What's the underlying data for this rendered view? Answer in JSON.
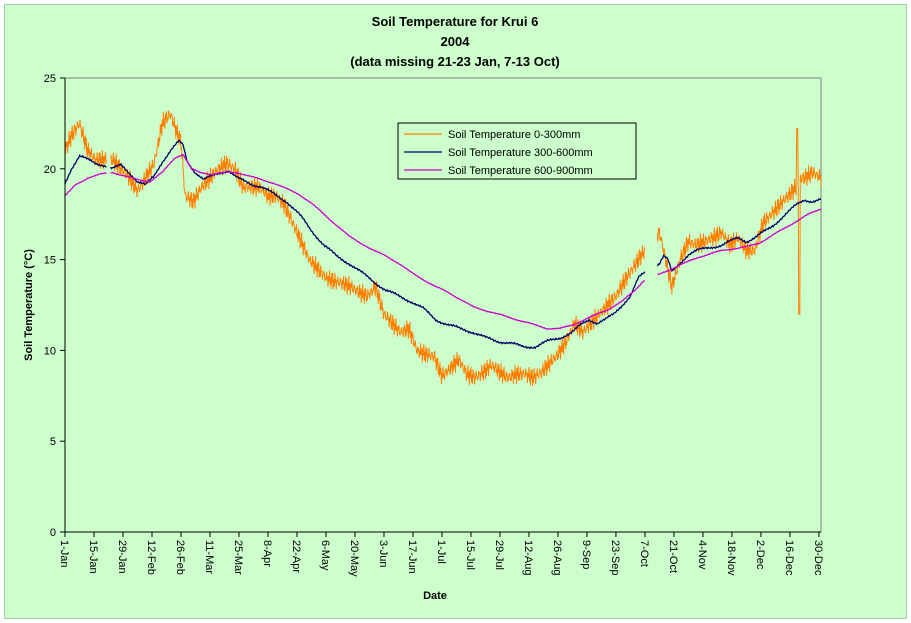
{
  "chart_data": {
    "type": "line",
    "title": [
      "Soil Temperature for Krui 6",
      "2004",
      "(data missing  21-23 Jan, 7-13 Oct)"
    ],
    "xlabel": "Date",
    "ylabel": "Soil Temperature (°C)",
    "ylim": [
      0,
      25
    ],
    "yticks": [
      0,
      5,
      10,
      15,
      20,
      25
    ],
    "xlim_day": [
      1,
      366
    ],
    "xticks": [
      {
        "day": 1,
        "label": "1-Jan"
      },
      {
        "day": 15,
        "label": "15-Jan"
      },
      {
        "day": 29,
        "label": "29-Jan"
      },
      {
        "day": 43,
        "label": "12-Feb"
      },
      {
        "day": 57,
        "label": "26-Feb"
      },
      {
        "day": 71,
        "label": "11-Mar"
      },
      {
        "day": 85,
        "label": "25-Mar"
      },
      {
        "day": 99,
        "label": "8-Apr"
      },
      {
        "day": 113,
        "label": "22-Apr"
      },
      {
        "day": 127,
        "label": "6-May"
      },
      {
        "day": 141,
        "label": "20-May"
      },
      {
        "day": 155,
        "label": "3-Jun"
      },
      {
        "day": 169,
        "label": "17-Jun"
      },
      {
        "day": 183,
        "label": "1-Jul"
      },
      {
        "day": 197,
        "label": "15-Jul"
      },
      {
        "day": 211,
        "label": "29-Jul"
      },
      {
        "day": 225,
        "label": "12-Aug"
      },
      {
        "day": 239,
        "label": "26-Aug"
      },
      {
        "day": 253,
        "label": "9-Sep"
      },
      {
        "day": 267,
        "label": "23-Sep"
      },
      {
        "day": 281,
        "label": "7-Oct"
      },
      {
        "day": 295,
        "label": "21-Oct"
      },
      {
        "day": 309,
        "label": "4-Nov"
      },
      {
        "day": 323,
        "label": "18-Nov"
      },
      {
        "day": 337,
        "label": "2-Dec"
      },
      {
        "day": 351,
        "label": "16-Dec"
      },
      {
        "day": 365,
        "label": "30-Dec"
      }
    ],
    "legend_position": "top-center",
    "gaps_day": [
      [
        21,
        23
      ],
      [
        281,
        287
      ]
    ],
    "series": [
      {
        "name": "Soil Temperature  0-300mm",
        "color": "#ff8000",
        "noise": 0.55,
        "x": [
          1,
          4,
          8,
          12,
          16,
          20,
          24,
          28,
          32,
          36,
          40,
          44,
          48,
          50,
          52,
          55,
          57,
          59,
          63,
          67,
          71,
          75,
          79,
          83,
          87,
          91,
          95,
          99,
          103,
          107,
          111,
          115,
          119,
          123,
          127,
          131,
          135,
          139,
          143,
          147,
          151,
          155,
          159,
          163,
          167,
          171,
          175,
          179,
          183,
          187,
          191,
          195,
          199,
          203,
          207,
          211,
          215,
          219,
          223,
          227,
          231,
          235,
          239,
          243,
          247,
          251,
          255,
          259,
          263,
          267,
          271,
          275,
          279,
          288,
          291,
          294,
          298,
          302,
          306,
          310,
          314,
          318,
          322,
          326,
          330,
          334,
          338,
          342,
          346,
          350,
          354,
          356,
          358,
          362,
          366
        ],
        "y": [
          21.0,
          21.8,
          22.5,
          21.0,
          20.5,
          20.5,
          20.5,
          20.0,
          19.5,
          18.8,
          19.5,
          20.3,
          22.5,
          22.8,
          23.0,
          22.0,
          21.5,
          18.5,
          18.2,
          19.0,
          19.5,
          20.0,
          20.3,
          20.0,
          19.0,
          19.0,
          19.0,
          18.5,
          18.5,
          18.0,
          17.0,
          16.0,
          15.0,
          14.5,
          14.0,
          13.8,
          13.7,
          13.5,
          13.2,
          13.0,
          13.5,
          12.0,
          11.5,
          11.0,
          11.2,
          10.0,
          9.8,
          9.7,
          8.6,
          9.0,
          9.5,
          8.7,
          8.5,
          8.8,
          9.2,
          8.8,
          8.5,
          8.7,
          8.7,
          8.5,
          8.8,
          9.3,
          9.8,
          10.5,
          11.5,
          11.0,
          11.5,
          12.0,
          12.5,
          13.0,
          13.8,
          14.5,
          15.2,
          16.5,
          15.0,
          13.5,
          15.0,
          16.0,
          15.8,
          16.0,
          16.2,
          16.5,
          15.8,
          16.2,
          15.5,
          15.5,
          17.0,
          17.5,
          18.0,
          18.5,
          19.0,
          19.5,
          19.5,
          19.8,
          19.5
        ]
      },
      {
        "name": "Soil Temperature 300-600mm",
        "color": "#000066",
        "noise": 0.1,
        "x": [
          1,
          4,
          8,
          12,
          16,
          20,
          24,
          28,
          32,
          36,
          40,
          44,
          48,
          52,
          56,
          58,
          60,
          64,
          68,
          72,
          76,
          80,
          84,
          90,
          96,
          102,
          108,
          114,
          120,
          126,
          132,
          138,
          144,
          150,
          156,
          162,
          168,
          174,
          180,
          186,
          192,
          198,
          204,
          210,
          216,
          222,
          228,
          234,
          240,
          246,
          250,
          254,
          258,
          262,
          266,
          270,
          274,
          276,
          278,
          280,
          288,
          290,
          292,
          294,
          298,
          302,
          306,
          310,
          314,
          318,
          322,
          326,
          330,
          334,
          338,
          342,
          346,
          350,
          354,
          358,
          362,
          366
        ],
        "y": [
          19.2,
          20.0,
          20.7,
          20.5,
          20.3,
          20.2,
          20.0,
          20.2,
          19.8,
          19.3,
          19.1,
          19.6,
          20.4,
          21.0,
          21.5,
          21.3,
          20.4,
          19.8,
          19.4,
          19.6,
          19.8,
          19.9,
          19.5,
          19.2,
          19.0,
          18.6,
          18.2,
          17.5,
          16.6,
          15.8,
          15.2,
          14.8,
          14.3,
          13.8,
          13.3,
          13.0,
          12.7,
          12.3,
          11.7,
          11.4,
          11.2,
          11.0,
          10.7,
          10.5,
          10.4,
          10.2,
          10.2,
          10.5,
          10.7,
          11.0,
          11.4,
          11.7,
          11.5,
          11.7,
          12.0,
          12.5,
          13.0,
          13.5,
          14.0,
          14.2,
          14.8,
          15.2,
          15.0,
          14.3,
          14.8,
          15.3,
          15.5,
          15.6,
          15.7,
          15.8,
          16.0,
          16.2,
          16.0,
          16.2,
          16.5,
          16.8,
          17.2,
          17.6,
          18.0,
          18.3,
          18.2,
          18.3
        ]
      },
      {
        "name": "Soil Temperature 600-900mm",
        "color": "#cc00cc",
        "noise": 0.04,
        "x": [
          1,
          6,
          12,
          18,
          24,
          30,
          36,
          42,
          48,
          54,
          58,
          62,
          66,
          72,
          78,
          84,
          90,
          96,
          102,
          108,
          114,
          120,
          126,
          132,
          138,
          144,
          150,
          156,
          162,
          168,
          174,
          180,
          186,
          192,
          198,
          204,
          210,
          216,
          222,
          228,
          234,
          240,
          246,
          252,
          258,
          264,
          270,
          276,
          280,
          288,
          292,
          296,
          300,
          306,
          312,
          318,
          324,
          330,
          336,
          342,
          348,
          354,
          360,
          366
        ],
        "y": [
          18.5,
          19.1,
          19.5,
          19.7,
          19.8,
          19.6,
          19.4,
          19.3,
          19.8,
          20.6,
          20.8,
          20.0,
          19.8,
          19.7,
          19.8,
          19.8,
          19.6,
          19.4,
          19.2,
          18.9,
          18.6,
          18.1,
          17.5,
          16.9,
          16.3,
          15.9,
          15.5,
          15.2,
          14.8,
          14.3,
          13.9,
          13.5,
          13.2,
          12.8,
          12.4,
          12.2,
          12.0,
          11.8,
          11.6,
          11.4,
          11.2,
          11.2,
          11.4,
          11.7,
          12.0,
          12.3,
          12.7,
          13.3,
          13.8,
          14.2,
          14.4,
          14.6,
          14.8,
          15.1,
          15.3,
          15.5,
          15.6,
          15.7,
          15.9,
          16.3,
          16.7,
          17.1,
          17.5,
          17.8
        ]
      }
    ]
  }
}
